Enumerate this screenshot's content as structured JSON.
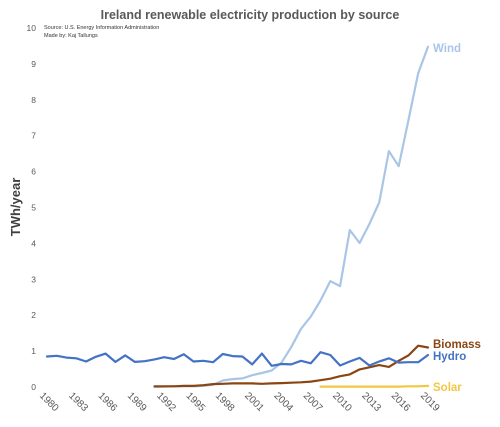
{
  "chart_data": {
    "type": "line",
    "title": "Ireland renewable electricity production by source",
    "source_line": "Source: U.S. Energy Information Administration",
    "credit_line": "Made by: Kaj Tallungs",
    "xlabel": "",
    "ylabel": "TWh/year",
    "xlim": [
      1980,
      2019
    ],
    "ylim": [
      0,
      10
    ],
    "y_ticks": [
      0,
      1,
      2,
      3,
      4,
      5,
      6,
      7,
      8,
      9,
      10
    ],
    "x_ticks": [
      1980,
      1983,
      1986,
      1989,
      1992,
      1995,
      1998,
      2001,
      2004,
      2007,
      2010,
      2013,
      2016,
      2019
    ],
    "grid": false,
    "legend": "inline labels at right end of each series",
    "series": [
      {
        "name": "Wind",
        "color": "#a9c6e6",
        "x": [
          1991,
          1992,
          1993,
          1994,
          1995,
          1996,
          1997,
          1998,
          1999,
          2000,
          2001,
          2002,
          2003,
          2004,
          2005,
          2006,
          2007,
          2008,
          2009,
          2010,
          2011,
          2012,
          2013,
          2014,
          2015,
          2016,
          2017,
          2018,
          2019
        ],
        "values": [
          0.0,
          0.01,
          0.02,
          0.02,
          0.02,
          0.03,
          0.06,
          0.18,
          0.22,
          0.24,
          0.33,
          0.39,
          0.46,
          0.68,
          1.11,
          1.62,
          1.96,
          2.41,
          2.95,
          2.81,
          4.37,
          4.01,
          4.54,
          5.14,
          6.57,
          6.15,
          7.44,
          8.74,
          9.48
        ]
      },
      {
        "name": "Biomass",
        "color": "#8b4513",
        "x": [
          1991,
          1992,
          1993,
          1994,
          1995,
          1996,
          1997,
          1998,
          1999,
          2000,
          2001,
          2002,
          2003,
          2004,
          2005,
          2006,
          2007,
          2008,
          2009,
          2010,
          2011,
          2012,
          2013,
          2014,
          2015,
          2016,
          2017,
          2018,
          2019
        ],
        "values": [
          0.02,
          0.02,
          0.02,
          0.03,
          0.03,
          0.05,
          0.08,
          0.09,
          0.1,
          0.1,
          0.1,
          0.09,
          0.1,
          0.11,
          0.12,
          0.13,
          0.15,
          0.19,
          0.23,
          0.3,
          0.35,
          0.49,
          0.55,
          0.61,
          0.56,
          0.73,
          0.88,
          1.15,
          1.1
        ]
      },
      {
        "name": "Hydro",
        "color": "#4472c4",
        "x": [
          1980,
          1981,
          1982,
          1983,
          1984,
          1985,
          1986,
          1987,
          1988,
          1989,
          1990,
          1991,
          1992,
          1993,
          1994,
          1995,
          1996,
          1997,
          1998,
          1999,
          2000,
          2001,
          2002,
          2003,
          2004,
          2005,
          2006,
          2007,
          2008,
          2009,
          2010,
          2011,
          2012,
          2013,
          2014,
          2015,
          2016,
          2017,
          2018,
          2019
        ],
        "values": [
          0.85,
          0.87,
          0.82,
          0.8,
          0.71,
          0.84,
          0.93,
          0.7,
          0.88,
          0.7,
          0.72,
          0.77,
          0.83,
          0.78,
          0.91,
          0.71,
          0.73,
          0.69,
          0.92,
          0.86,
          0.85,
          0.63,
          0.93,
          0.59,
          0.64,
          0.63,
          0.73,
          0.66,
          0.97,
          0.89,
          0.6,
          0.71,
          0.81,
          0.6,
          0.71,
          0.8,
          0.68,
          0.69,
          0.69,
          0.89
        ]
      },
      {
        "name": "Solar",
        "color": "#f2c744",
        "x": [
          2008,
          2009,
          2010,
          2011,
          2012,
          2013,
          2014,
          2015,
          2016,
          2017,
          2018,
          2019
        ],
        "values": [
          0.01,
          0.01,
          0.01,
          0.01,
          0.01,
          0.01,
          0.01,
          0.01,
          0.01,
          0.02,
          0.02,
          0.03
        ]
      }
    ]
  }
}
